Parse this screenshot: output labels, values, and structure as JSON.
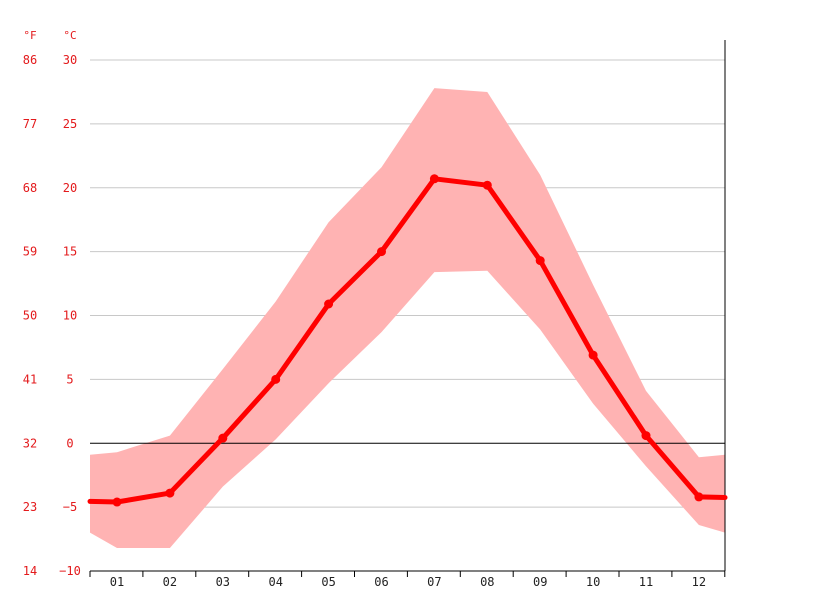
{
  "chart_data": {
    "type": "line",
    "title": "",
    "xlabel": "",
    "ylabel": "",
    "units": {
      "fahrenheit": "°F",
      "celsius": "°C"
    },
    "categories": [
      "01",
      "02",
      "03",
      "04",
      "05",
      "06",
      "07",
      "08",
      "09",
      "10",
      "11",
      "12"
    ],
    "y_ticks_celsius": [
      "30",
      "25",
      "20",
      "15",
      "10",
      "5",
      "0",
      "−5",
      "−10"
    ],
    "y_ticks_fahrenheit": [
      "86",
      "77",
      "68",
      "59",
      "50",
      "41",
      "32",
      "23",
      "14"
    ],
    "ylim": [
      -10,
      30
    ],
    "grid": true,
    "series": [
      {
        "values": [
          -4.6,
          -3.9,
          0.4,
          5.0,
          10.9,
          15.0,
          20.7,
          20.2,
          14.3,
          6.9,
          0.6,
          -4.2
        ]
      }
    ],
    "range_band": {
      "upper": [
        -0.7,
        0.6,
        5.8,
        11.1,
        17.3,
        21.6,
        27.8,
        27.5,
        21.0,
        12.4,
        4.1,
        -1.1
      ],
      "lower": [
        -8.2,
        -8.2,
        -3.4,
        0.3,
        4.7,
        8.7,
        13.4,
        13.5,
        8.9,
        3.1,
        -1.8,
        -6.4
      ],
      "edge_upper": {
        "left": -0.9,
        "right": -0.9
      },
      "edge_lower": {
        "left": -7.0,
        "right": -7.0
      }
    },
    "colors": {
      "line": "#ff0000",
      "band": "#ffb3b3",
      "axis_text": "#e31a1c",
      "month_text": "#222222",
      "grid": "#c8c8c8",
      "zero_line": "#000000"
    }
  }
}
